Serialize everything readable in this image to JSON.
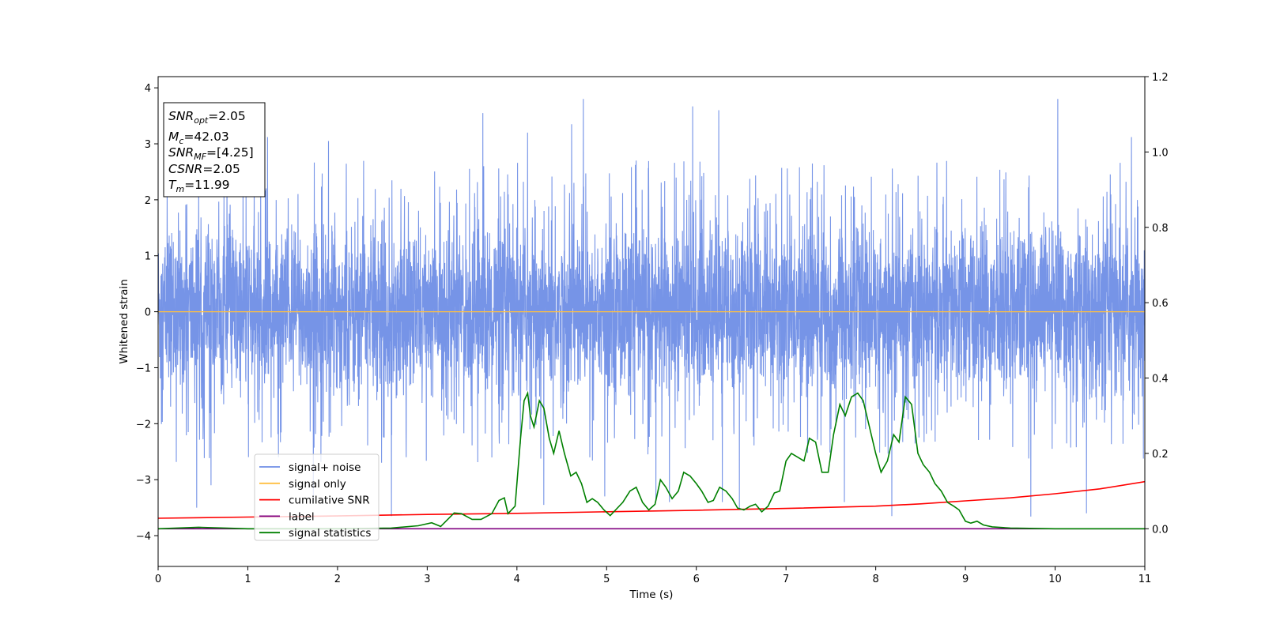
{
  "chart_data": {
    "type": "line",
    "title": "",
    "xlabel": "Time (s)",
    "ylabel": "Whitened strain",
    "xlim": [
      0,
      11
    ],
    "ylim": [
      -4.55,
      4.2
    ],
    "y2lim": [
      -0.1,
      1.2
    ],
    "x_ticks": [
      "0",
      "1",
      "2",
      "3",
      "4",
      "5",
      "6",
      "7",
      "8",
      "9",
      "10",
      "11"
    ],
    "y_ticks": [
      {
        "value": 4,
        "label": "4"
      },
      {
        "value": 3,
        "label": "3"
      },
      {
        "value": 2,
        "label": "2"
      },
      {
        "value": 1,
        "label": "1"
      },
      {
        "value": 0,
        "label": "0"
      },
      {
        "value": -1,
        "label": "−1"
      },
      {
        "value": -2,
        "label": "−2"
      },
      {
        "value": -3,
        "label": "−3"
      },
      {
        "value": -4,
        "label": "−4"
      }
    ],
    "y2_ticks": [
      {
        "value": 1.2,
        "label": "1.2"
      },
      {
        "value": 1.0,
        "label": "1.0"
      },
      {
        "value": 0.8,
        "label": "0.8"
      },
      {
        "value": 0.6,
        "label": "0.6"
      },
      {
        "value": 0.4,
        "label": "0.4"
      },
      {
        "value": 0.2,
        "label": "0.2"
      },
      {
        "value": 0.0,
        "label": "0.0"
      }
    ],
    "grid": false,
    "legend_position": "lower-left",
    "annotation": {
      "snr_opt": "=2.05",
      "mc": "=42.03",
      "snr_mf": "=[4.25]",
      "csnr": "=2.05",
      "tm": "=11.99"
    },
    "series": [
      {
        "name": "signal+ noise",
        "axis": "left",
        "color": "#6f8ee6",
        "kind": "noise",
        "description_values": {
          "typical_band": [
            -1.9,
            2.1
          ],
          "max_peak": 3.8,
          "min_peak": -3.66
        },
        "spikes": [
          [
            0.43,
            -3.5
          ],
          [
            0.59,
            -3.1
          ],
          [
            1.22,
            3.12
          ],
          [
            1.73,
            -3.4
          ],
          [
            1.9,
            3.05
          ],
          [
            2.6,
            -3.65
          ],
          [
            3.62,
            3.55
          ],
          [
            4.12,
            3.2
          ],
          [
            4.3,
            -3.45
          ],
          [
            4.61,
            3.35
          ],
          [
            4.74,
            3.8
          ],
          [
            4.98,
            -3.3
          ],
          [
            5.55,
            -3.35
          ],
          [
            5.7,
            -3.4
          ],
          [
            5.96,
            3.67
          ],
          [
            6.25,
            3.6
          ],
          [
            6.29,
            -3.4
          ],
          [
            6.48,
            -3.52
          ],
          [
            7.65,
            -3.4
          ],
          [
            8.18,
            -3.65
          ],
          [
            9.73,
            -3.66
          ],
          [
            10.03,
            3.8
          ],
          [
            10.35,
            -3.6
          ],
          [
            10.85,
            3.12
          ]
        ]
      },
      {
        "name": "signal only",
        "axis": "left",
        "color": "#ffbf40",
        "x": [
          0,
          11
        ],
        "y": [
          0,
          0
        ]
      },
      {
        "name": "cumilative SNR",
        "axis": "right",
        "color": "#ff0000",
        "x": [
          0,
          1,
          2,
          3,
          4,
          5,
          6,
          7,
          8,
          8.5,
          9,
          9.5,
          10,
          10.5,
          11
        ],
        "y": [
          0.028,
          0.031,
          0.034,
          0.038,
          0.041,
          0.045,
          0.049,
          0.054,
          0.06,
          0.066,
          0.074,
          0.082,
          0.093,
          0.106,
          0.125
        ]
      },
      {
        "name": "label",
        "axis": "right",
        "color": "#800080",
        "x": [
          0,
          11
        ],
        "y": [
          0,
          0
        ]
      },
      {
        "name": "signal statistics",
        "axis": "right",
        "color": "#008000",
        "x": [
          0,
          0.45,
          1.0,
          2.0,
          2.6,
          2.9,
          3.05,
          3.15,
          3.3,
          3.38,
          3.5,
          3.6,
          3.72,
          3.8,
          3.86,
          3.9,
          3.98,
          4.04,
          4.08,
          4.12,
          4.15,
          4.19,
          4.25,
          4.3,
          4.36,
          4.41,
          4.47,
          4.53,
          4.6,
          4.66,
          4.72,
          4.78,
          4.84,
          4.9,
          4.97,
          5.04,
          5.1,
          5.18,
          5.26,
          5.33,
          5.4,
          5.47,
          5.54,
          5.6,
          5.66,
          5.73,
          5.8,
          5.86,
          5.93,
          6.0,
          6.06,
          6.13,
          6.19,
          6.26,
          6.33,
          6.4,
          6.46,
          6.53,
          6.6,
          6.66,
          6.73,
          6.8,
          6.87,
          6.93,
          7.0,
          7.06,
          7.13,
          7.2,
          7.26,
          7.33,
          7.4,
          7.47,
          7.53,
          7.6,
          7.66,
          7.73,
          7.8,
          7.86,
          7.93,
          8.0,
          8.06,
          8.13,
          8.2,
          8.26,
          8.33,
          8.4,
          8.47,
          8.53,
          8.6,
          8.66,
          8.73,
          8.8,
          8.87,
          8.93,
          9.0,
          9.06,
          9.13,
          9.2,
          9.3,
          9.5,
          10.0,
          11.0
        ],
        "y": [
          0,
          0.004,
          0,
          0,
          0.002,
          0.008,
          0.016,
          0.006,
          0.042,
          0.04,
          0.025,
          0.025,
          0.04,
          0.075,
          0.082,
          0.04,
          0.06,
          0.24,
          0.34,
          0.36,
          0.3,
          0.27,
          0.34,
          0.32,
          0.24,
          0.2,
          0.26,
          0.2,
          0.14,
          0.15,
          0.12,
          0.07,
          0.08,
          0.07,
          0.05,
          0.035,
          0.05,
          0.07,
          0.1,
          0.11,
          0.07,
          0.05,
          0.065,
          0.13,
          0.11,
          0.08,
          0.1,
          0.15,
          0.14,
          0.12,
          0.1,
          0.07,
          0.075,
          0.11,
          0.1,
          0.08,
          0.055,
          0.05,
          0.06,
          0.065,
          0.045,
          0.06,
          0.095,
          0.1,
          0.18,
          0.2,
          0.19,
          0.18,
          0.24,
          0.23,
          0.15,
          0.15,
          0.25,
          0.33,
          0.3,
          0.35,
          0.36,
          0.34,
          0.27,
          0.2,
          0.15,
          0.18,
          0.25,
          0.23,
          0.35,
          0.33,
          0.2,
          0.17,
          0.15,
          0.12,
          0.1,
          0.07,
          0.06,
          0.05,
          0.02,
          0.015,
          0.02,
          0.01,
          0.005,
          0.002,
          0,
          0
        ]
      }
    ]
  }
}
